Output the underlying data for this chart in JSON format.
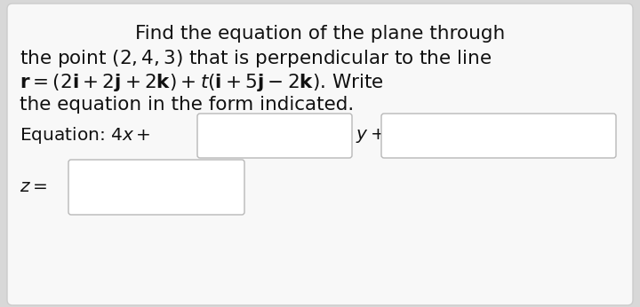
{
  "bg_color": "#d8d8d8",
  "card_color": "#f8f8f8",
  "card_edge_color": "#cccccc",
  "text_color": "#111111",
  "line1": "Find the equation of the plane through",
  "line2": "the point $(2, 4, 3)$ that is perpendicular to the line",
  "line3": "$\\mathbf{r} = (2\\mathbf{i} + 2\\mathbf{j} + 2\\mathbf{k}) + t(\\mathbf{i} + 5\\mathbf{j} - 2\\mathbf{k})$. Write",
  "line4": "the equation in the form indicated.",
  "eq_text": "Equation: $4x+$",
  "y_text": "$y+$",
  "z_text": "$z =$",
  "box_color": "#ffffff",
  "box_edge_color": "#b8b8b8",
  "font_size": 15.5,
  "font_size_eq": 14.5
}
